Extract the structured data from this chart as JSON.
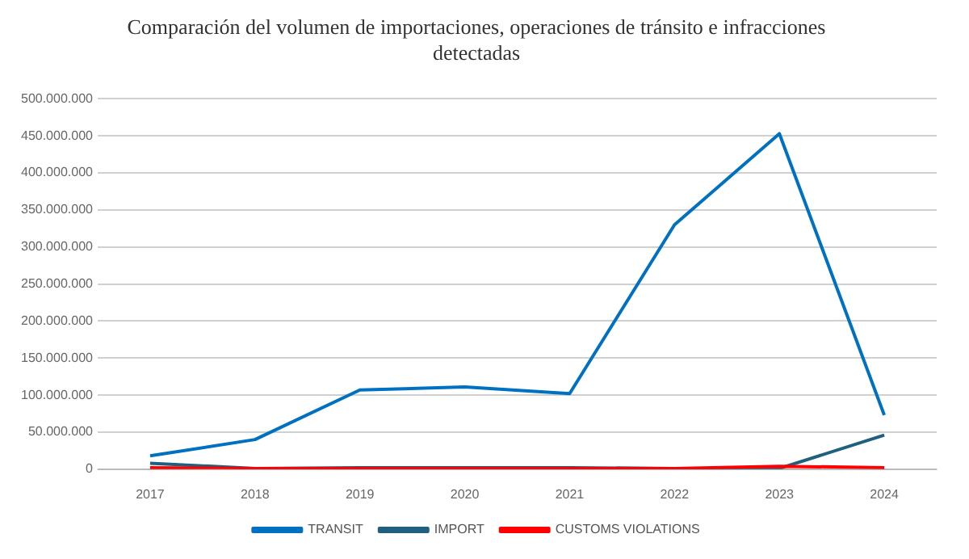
{
  "chart_data": {
    "type": "line",
    "title": "Comparación del volumen de importaciones, operaciones de tránsito e infracciones detectadas",
    "categories": [
      "2017",
      "2018",
      "2019",
      "2020",
      "2021",
      "2022",
      "2023",
      "2024"
    ],
    "series": [
      {
        "name": "TRANSIT",
        "color": "#0070c0",
        "values": [
          18000000,
          40000000,
          107000000,
          111000000,
          102000000,
          330000000,
          453000000,
          73000000
        ]
      },
      {
        "name": "IMPORT",
        "color": "#1f5f7f",
        "values": [
          8000000,
          1000000,
          2000000,
          2000000,
          2000000,
          1000000,
          1000000,
          46000000
        ]
      },
      {
        "name": "CUSTOMS VIOLATIONS",
        "color": "#ff0000",
        "values": [
          2000000,
          1000000,
          1000000,
          1000000,
          1000000,
          1000000,
          4000000,
          2000000
        ]
      }
    ],
    "ylim": [
      0,
      500000000
    ],
    "yticks": [
      {
        "value": 0,
        "label": "0"
      },
      {
        "value": 50000000,
        "label": "50.000.000"
      },
      {
        "value": 100000000,
        "label": "100.000.000"
      },
      {
        "value": 150000000,
        "label": "150.000.000"
      },
      {
        "value": 200000000,
        "label": "200.000.000"
      },
      {
        "value": 250000000,
        "label": "250.000.000"
      },
      {
        "value": 300000000,
        "label": "300.000.000"
      },
      {
        "value": 350000000,
        "label": "350.000.000"
      },
      {
        "value": 400000000,
        "label": "400.000.000"
      },
      {
        "value": 450000000,
        "label": "450.000.000"
      },
      {
        "value": 500000000,
        "label": "500.000.000"
      }
    ],
    "grid": "y",
    "legend": "bottom",
    "marker": "none",
    "line_style": "solid"
  }
}
